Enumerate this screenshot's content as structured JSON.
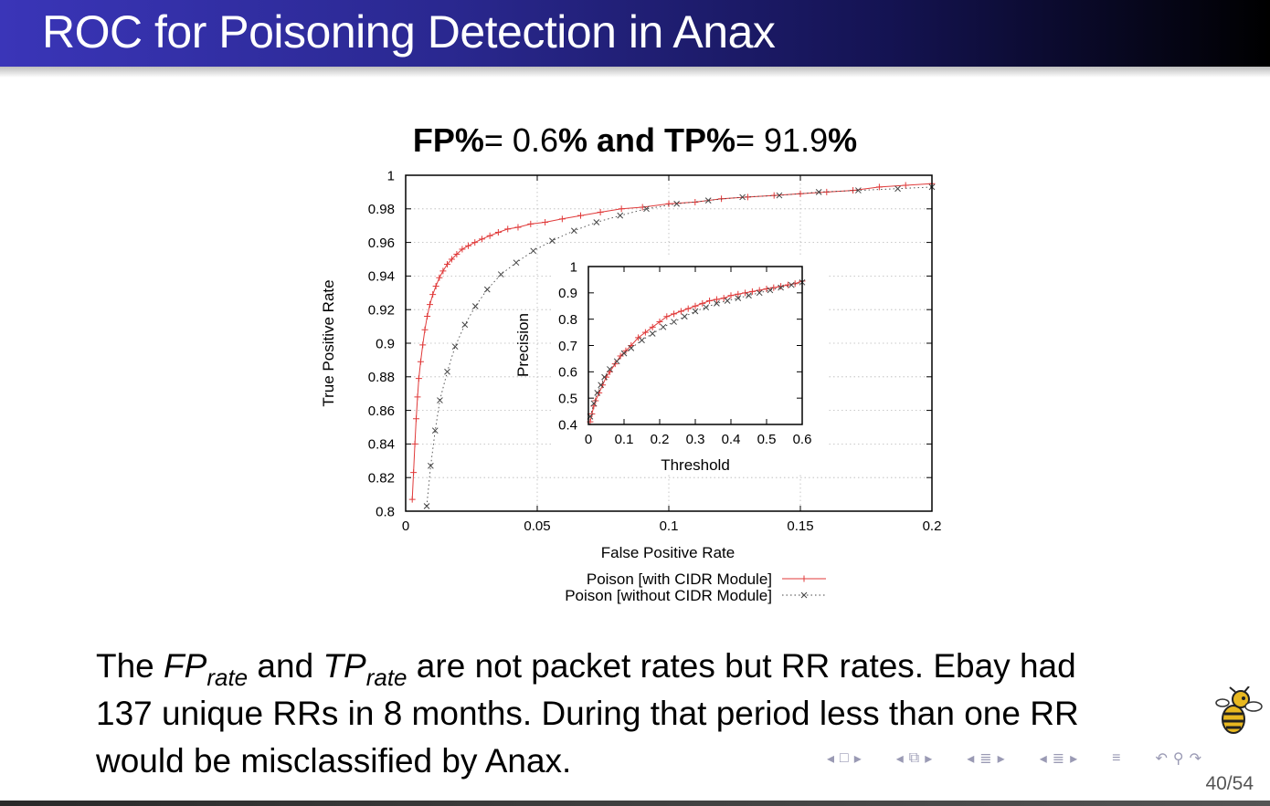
{
  "slide": {
    "title": "ROC for Poisoning Detection in Anax",
    "page_current": "40",
    "page_sep": "/",
    "page_total": "54"
  },
  "body": {
    "t1": "The ",
    "fp": "FP",
    "fp_sub": "rate",
    "t2": " and ",
    "tp": "TP",
    "tp_sub": "rate",
    "t3": " are not packet rates but RR rates. Ebay had 137 unique RRs in 8 months. During that period less than one RR would be misclassified by Anax."
  },
  "nav_icons": [
    "arrow-left-icon",
    "frame-icon",
    "arrow-right-icon",
    "arrow-left-icon",
    "subsection-icon",
    "arrow-right-icon",
    "arrow-left-icon",
    "section-icon",
    "arrow-right-icon",
    "arrow-left-icon",
    "section-list-icon",
    "arrow-right-icon",
    "align-icon",
    "undo-icon",
    "search-icon",
    "redo-icon"
  ],
  "colors": {
    "series_with": "#e03a3a",
    "series_without": "#444444",
    "title_gradient_start": "#3a35b8",
    "title_gradient_end": "#000000"
  },
  "chart_data": [
    {
      "type": "line",
      "title_parts": [
        "FP%",
        "= 0.6",
        "% and ",
        "TP%",
        "= 91.9",
        "%"
      ],
      "xlabel": "False Positive Rate",
      "ylabel": "True Positive Rate",
      "xlim": [
        0,
        0.2
      ],
      "ylim": [
        0.8,
        1
      ],
      "xticks": [
        0,
        0.05,
        0.1,
        0.15,
        0.2
      ],
      "xtick_labels": [
        "0",
        "0.05",
        "0.1",
        "0.15",
        "0.2"
      ],
      "yticks": [
        0.8,
        0.82,
        0.84,
        0.86,
        0.88,
        0.9,
        0.92,
        0.94,
        0.96,
        0.98,
        1
      ],
      "ytick_labels": [
        "0.8",
        "0.82",
        "0.84",
        "0.86",
        "0.88",
        "0.9",
        "0.92",
        "0.94",
        "0.96",
        "0.98",
        "1"
      ],
      "grid": true,
      "legend_position": "bottom-center",
      "series": [
        {
          "name": "Poison [with CIDR Module]",
          "line_style": "solid",
          "marker": "plus",
          "x": [
            0.0025,
            0.003,
            0.0035,
            0.004,
            0.0045,
            0.005,
            0.0057,
            0.0065,
            0.0073,
            0.0082,
            0.0092,
            0.0103,
            0.0115,
            0.0128,
            0.0142,
            0.0158,
            0.0175,
            0.0194,
            0.0215,
            0.0238,
            0.0263,
            0.029,
            0.032,
            0.0352,
            0.0388,
            0.0427,
            0.0475,
            0.053,
            0.0595,
            0.0665,
            0.074,
            0.082,
            0.09,
            0.1,
            0.11,
            0.12,
            0.13,
            0.14,
            0.15,
            0.16,
            0.17,
            0.18,
            0.19,
            0.2
          ],
          "y": [
            0.807,
            0.823,
            0.84,
            0.855,
            0.868,
            0.879,
            0.889,
            0.899,
            0.908,
            0.916,
            0.923,
            0.929,
            0.934,
            0.939,
            0.943,
            0.947,
            0.95,
            0.953,
            0.956,
            0.958,
            0.96,
            0.962,
            0.964,
            0.966,
            0.968,
            0.969,
            0.971,
            0.972,
            0.974,
            0.976,
            0.978,
            0.98,
            0.981,
            0.983,
            0.984,
            0.986,
            0.987,
            0.988,
            0.989,
            0.99,
            0.991,
            0.993,
            0.994,
            0.995
          ]
        },
        {
          "name": "Poison [without CIDR Module]",
          "line_style": "dotted",
          "marker": "x",
          "x": [
            0.008,
            0.0095,
            0.0112,
            0.013,
            0.0158,
            0.0188,
            0.0225,
            0.0265,
            0.031,
            0.0362,
            0.042,
            0.0485,
            0.0557,
            0.064,
            0.0725,
            0.0815,
            0.0915,
            0.103,
            0.115,
            0.128,
            0.142,
            0.157,
            0.172,
            0.187,
            0.2
          ],
          "y": [
            0.803,
            0.827,
            0.848,
            0.866,
            0.883,
            0.898,
            0.911,
            0.922,
            0.932,
            0.941,
            0.948,
            0.955,
            0.961,
            0.967,
            0.972,
            0.976,
            0.98,
            0.983,
            0.985,
            0.987,
            0.988,
            0.99,
            0.991,
            0.992,
            0.993
          ]
        }
      ]
    },
    {
      "type": "line",
      "title": "",
      "xlabel": "Threshold",
      "ylabel": "Precision",
      "xlim": [
        0,
        0.6
      ],
      "ylim": [
        0.4,
        1
      ],
      "xticks": [
        0,
        0.1,
        0.2,
        0.3,
        0.4,
        0.5,
        0.6
      ],
      "xtick_labels": [
        "0",
        "0.1",
        "0.2",
        "0.3",
        "0.4",
        "0.5",
        "0.6"
      ],
      "yticks": [
        0.4,
        0.5,
        0.6,
        0.7,
        0.8,
        0.9,
        1
      ],
      "ytick_labels": [
        "0.4",
        "0.5",
        "0.6",
        "0.7",
        "0.8",
        "0.9",
        "1"
      ],
      "grid": false,
      "series": [
        {
          "name": "Poison [with CIDR Module]",
          "line_style": "solid",
          "marker": "plus",
          "x": [
            0.005,
            0.01,
            0.015,
            0.02,
            0.03,
            0.04,
            0.05,
            0.06,
            0.075,
            0.09,
            0.105,
            0.12,
            0.14,
            0.16,
            0.18,
            0.2,
            0.22,
            0.24,
            0.26,
            0.28,
            0.3,
            0.32,
            0.34,
            0.36,
            0.38,
            0.4,
            0.42,
            0.44,
            0.46,
            0.48,
            0.5,
            0.52,
            0.54,
            0.56,
            0.58,
            0.6
          ],
          "y": [
            0.41,
            0.44,
            0.47,
            0.49,
            0.52,
            0.55,
            0.58,
            0.6,
            0.63,
            0.66,
            0.68,
            0.7,
            0.73,
            0.75,
            0.77,
            0.79,
            0.81,
            0.82,
            0.83,
            0.84,
            0.85,
            0.86,
            0.87,
            0.875,
            0.88,
            0.89,
            0.895,
            0.9,
            0.905,
            0.91,
            0.915,
            0.92,
            0.925,
            0.93,
            0.935,
            0.945
          ]
        },
        {
          "name": "Poison [without CIDR Module]",
          "line_style": "dotted",
          "marker": "x",
          "x": [
            0.005,
            0.015,
            0.025,
            0.035,
            0.045,
            0.06,
            0.08,
            0.1,
            0.12,
            0.15,
            0.18,
            0.21,
            0.24,
            0.27,
            0.3,
            0.33,
            0.36,
            0.39,
            0.42,
            0.45,
            0.48,
            0.51,
            0.54,
            0.57,
            0.6
          ],
          "y": [
            0.43,
            0.48,
            0.52,
            0.55,
            0.58,
            0.61,
            0.64,
            0.67,
            0.69,
            0.72,
            0.745,
            0.77,
            0.79,
            0.81,
            0.83,
            0.845,
            0.86,
            0.87,
            0.88,
            0.89,
            0.9,
            0.91,
            0.92,
            0.93,
            0.94
          ]
        }
      ]
    }
  ]
}
